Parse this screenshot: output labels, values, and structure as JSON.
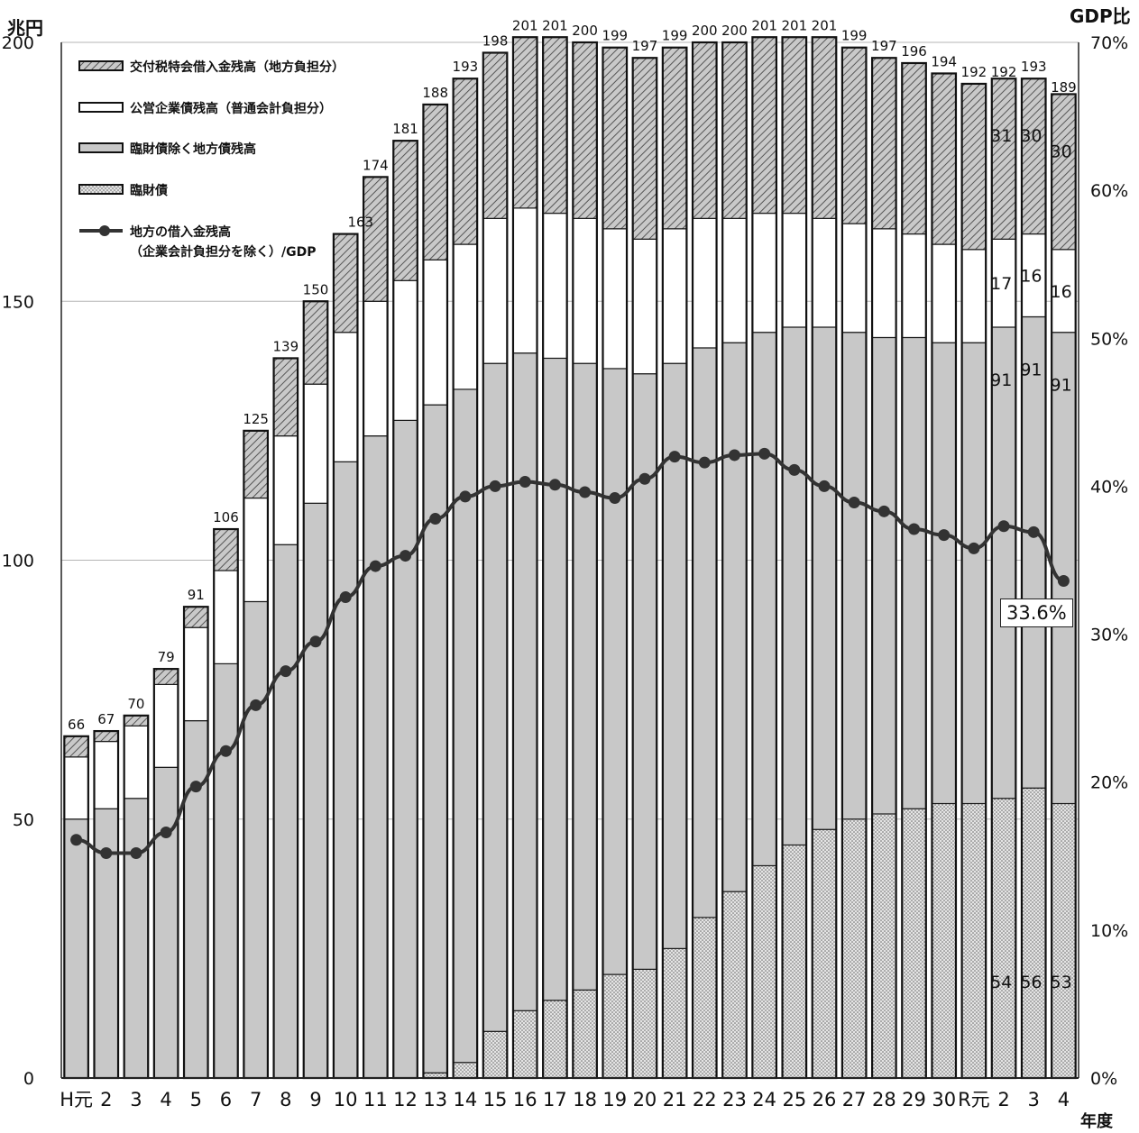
{
  "chart_data": {
    "type": "bar",
    "stacked": true,
    "y_left_unit": "兆円",
    "y_right_unit": "GDP比",
    "x_unit": "年度",
    "ylim_left": [
      0,
      200
    ],
    "ylim_right": [
      0,
      70
    ],
    "yticks_left": [
      "0",
      "50",
      "100",
      "150",
      "200"
    ],
    "yticks_right": [
      "0%",
      "10%",
      "20%",
      "30%",
      "40%",
      "50%",
      "60%",
      "70%"
    ],
    "categories": [
      "H元",
      "2",
      "3",
      "4",
      "5",
      "6",
      "7",
      "8",
      "9",
      "10",
      "11",
      "12",
      "13",
      "14",
      "15",
      "16",
      "17",
      "18",
      "19",
      "20",
      "21",
      "22",
      "23",
      "24",
      "25",
      "26",
      "27",
      "28",
      "29",
      "30",
      "R元",
      "2",
      "3",
      "4"
    ],
    "legend": [
      "交付税特会借入金残高（地方負担分）",
      "公営企業債残高（普通会計負担分）",
      "臨財債除く地方債残高",
      "臨財債",
      "地方の借入金残高（企業会計負担分を除く）/GDP"
    ],
    "series": [
      {
        "name": "臨財債",
        "values": [
          0,
          0,
          0,
          0,
          0,
          0,
          0,
          0,
          0,
          0,
          0,
          0,
          1,
          3,
          9,
          13,
          15,
          17,
          20,
          21,
          25,
          31,
          36,
          41,
          45,
          48,
          50,
          51,
          52,
          53,
          53,
          54,
          56,
          53
        ]
      },
      {
        "name": "臨財債除く地方債残高",
        "values": [
          50,
          52,
          54,
          60,
          69,
          80,
          92,
          103,
          111,
          119,
          124,
          127,
          129,
          130,
          129,
          127,
          124,
          121,
          117,
          115,
          113,
          110,
          106,
          103,
          100,
          97,
          94,
          92,
          91,
          89,
          89,
          91,
          91,
          91
        ]
      },
      {
        "name": "公営企業債残高（普通会計負担分）",
        "values": [
          12,
          13,
          14,
          16,
          18,
          18,
          20,
          21,
          23,
          25,
          26,
          27,
          28,
          28,
          28,
          28,
          28,
          28,
          27,
          26,
          26,
          25,
          24,
          23,
          22,
          21,
          21,
          21,
          20,
          19,
          18,
          17,
          16,
          16
        ]
      },
      {
        "name": "交付税特会借入金残高（地方負担分）",
        "values": [
          4,
          2,
          2,
          3,
          4,
          8,
          13,
          15,
          16,
          19,
          24,
          27,
          30,
          32,
          32,
          33,
          34,
          34,
          35,
          35,
          35,
          34,
          34,
          34,
          34,
          35,
          34,
          33,
          33,
          33,
          32,
          31,
          30,
          30
        ]
      }
    ],
    "totals": [
      "66",
      "67",
      "70",
      "79",
      "91",
      "106",
      "125",
      "139",
      "150",
      "163",
      "174",
      "181",
      "188",
      "193",
      "198",
      "201",
      "201",
      "200",
      "199",
      "197",
      "199",
      "200",
      "200",
      "201",
      "201",
      "201",
      "199",
      "197",
      "196",
      "194",
      "192",
      "192",
      "193",
      "189"
    ],
    "line": {
      "name": "地方の借入金残高（企業会計負担分を除く）/GDP",
      "values": [
        16.1,
        15.2,
        15.2,
        16.6,
        19.7,
        22.1,
        25.2,
        27.5,
        29.5,
        32.5,
        34.6,
        35.3,
        37.8,
        39.3,
        40.0,
        40.3,
        40.1,
        39.6,
        39.2,
        40.5,
        42.0,
        41.6,
        42.1,
        42.2,
        41.1,
        40.0,
        38.9,
        38.3,
        37.1,
        36.7,
        35.8,
        37.3,
        36.9,
        33.6
      ]
    },
    "data_labels": [
      {
        "category_index": 31,
        "series": "臨財債",
        "text": "54"
      },
      {
        "category_index": 32,
        "series": "臨財債",
        "text": "56"
      },
      {
        "category_index": 33,
        "series": "臨財債",
        "text": "53"
      },
      {
        "category_index": 31,
        "series": "臨財債除く地方債残高",
        "text": "91"
      },
      {
        "category_index": 32,
        "series": "臨財債除く地方債残高",
        "text": "91"
      },
      {
        "category_index": 33,
        "series": "臨財債除く地方債残高",
        "text": "91"
      },
      {
        "category_index": 31,
        "series": "公営企業債残高（普通会計負担分）",
        "text": "17"
      },
      {
        "category_index": 32,
        "series": "公営企業債残高（普通会計負担分）",
        "text": "16"
      },
      {
        "category_index": 33,
        "series": "公営企業債残高（普通会計負担分）",
        "text": "16"
      },
      {
        "category_index": 31,
        "series": "交付税特会借入金残高（地方負担分）",
        "text": "31"
      },
      {
        "category_index": 32,
        "series": "交付税特会借入金残高（地方負担分）",
        "text": "30"
      },
      {
        "category_index": 33,
        "series": "交付税特会借入金残高（地方負担分）",
        "text": "30"
      }
    ],
    "annotation": "33.6%",
    "grid": "horizontal"
  }
}
